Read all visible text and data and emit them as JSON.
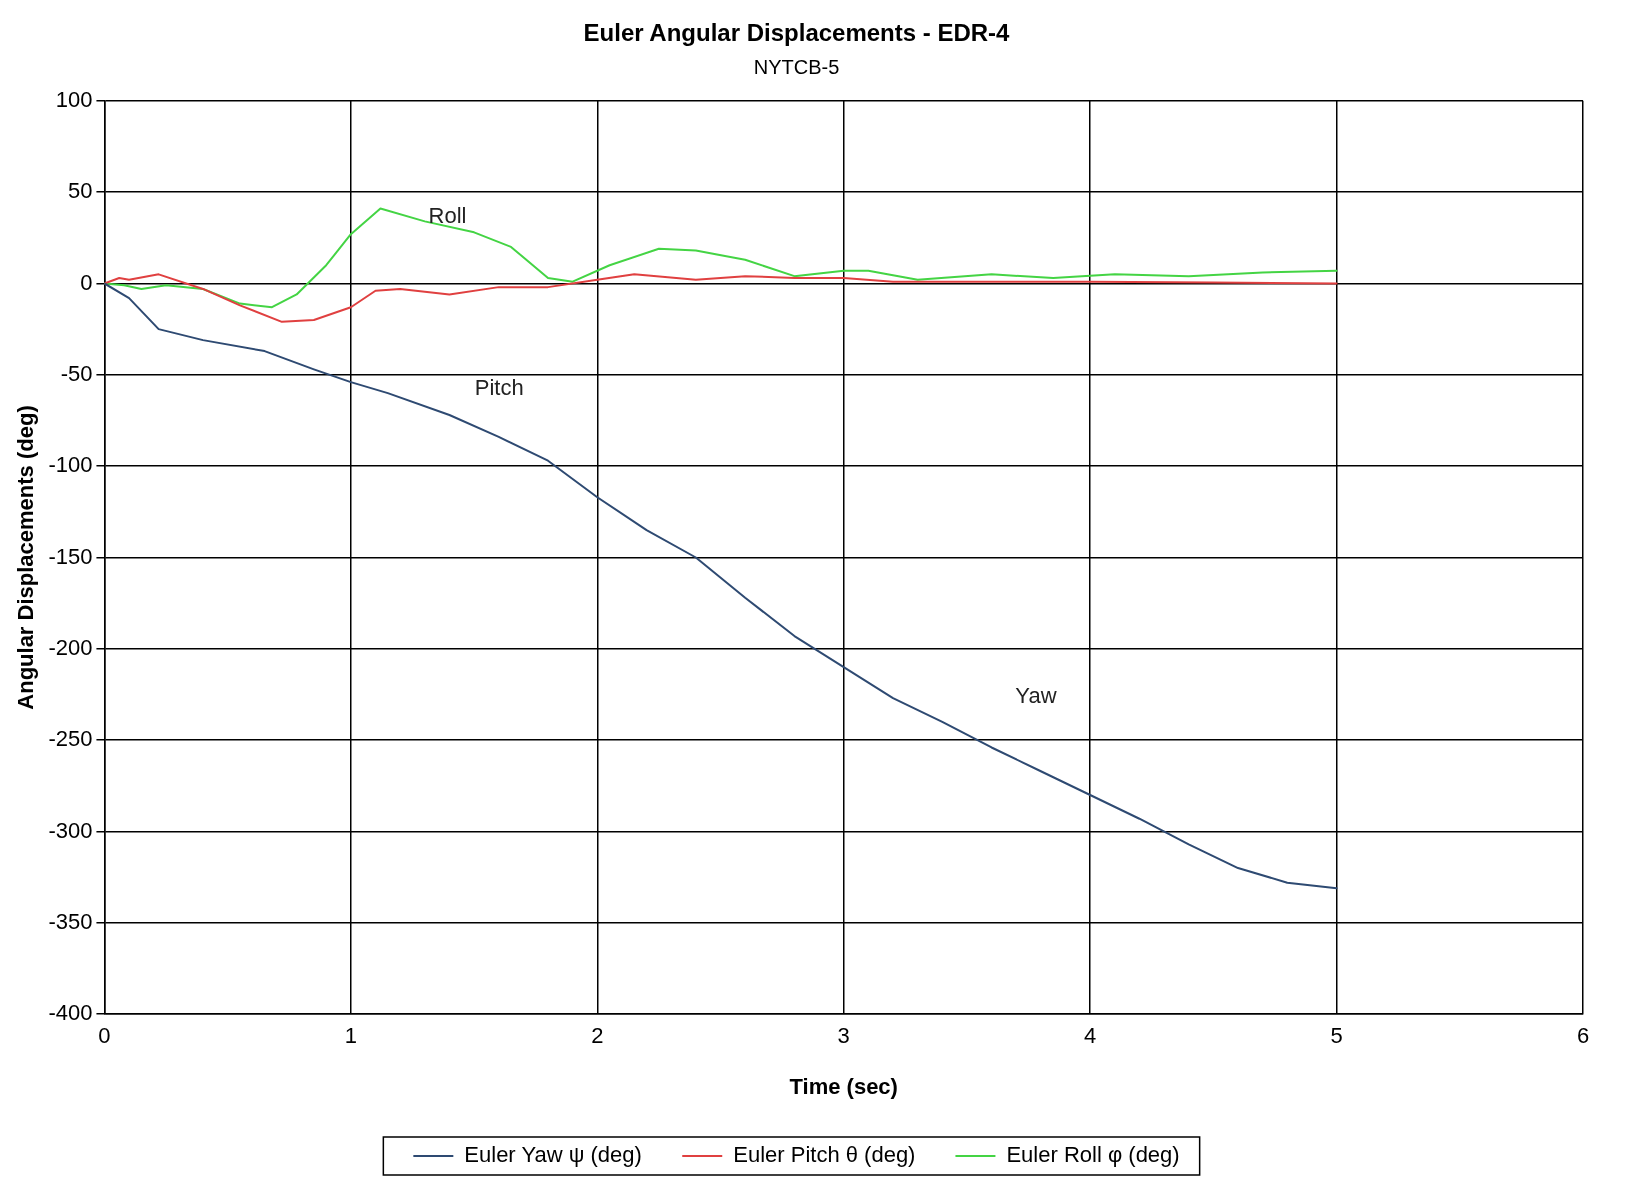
{
  "chart_data": {
    "type": "line",
    "title": "Euler Angular Displacements - EDR-4",
    "subtitle": "NYTCB-5",
    "xlabel": "Time (sec)",
    "ylabel": "Angular Displacements (deg)",
    "xlim": [
      0,
      6
    ],
    "xticks": [
      0,
      1,
      2,
      3,
      4,
      5,
      6
    ],
    "ylim": [
      -400,
      100
    ],
    "yticks": [
      -400,
      -350,
      -300,
      -250,
      -200,
      -150,
      -100,
      -50,
      0,
      50,
      100
    ],
    "grid": true,
    "legend": "bottom",
    "marker": "none",
    "line_style": "solid",
    "annotations": [
      "Roll",
      "Pitch",
      "Yaw"
    ],
    "series": [
      {
        "name": "Euler Yaw ψ (deg)",
        "color": "#2e4a72",
        "x": [
          0,
          0.1,
          0.22,
          0.4,
          0.65,
          0.85,
          1,
          1.15,
          1.4,
          1.6,
          1.8,
          2,
          2.2,
          2.4,
          2.6,
          2.8,
          3,
          3.2,
          3.4,
          3.6,
          3.8,
          4,
          4.2,
          4.4,
          4.6,
          4.8,
          5
        ],
        "values": [
          0,
          -8,
          -25,
          -31,
          -37,
          -47,
          -54,
          -60,
          -72,
          -84,
          -97,
          -117,
          -135,
          -150,
          -172,
          -193,
          -210,
          -227,
          -240,
          -254,
          -267,
          -280,
          -293,
          -307,
          -320,
          -328,
          -331
        ]
      },
      {
        "name": "Euler Pitch θ (deg)",
        "color": "#e04040",
        "x": [
          0,
          0.06,
          0.1,
          0.22,
          0.4,
          0.55,
          0.72,
          0.85,
          1,
          1.1,
          1.2,
          1.4,
          1.6,
          1.8,
          2,
          2.15,
          2.4,
          2.6,
          2.8,
          3,
          3.2,
          3.5,
          4,
          4.5,
          5
        ],
        "values": [
          0,
          3,
          2,
          5,
          -3,
          -12,
          -21,
          -20,
          -13,
          -4,
          -3,
          -6,
          -2,
          -2,
          2,
          5,
          2,
          4,
          3,
          3,
          1,
          1,
          1,
          0.5,
          0
        ]
      },
      {
        "name": "Euler Roll φ (deg)",
        "color": "#44d444",
        "x": [
          0,
          0.08,
          0.15,
          0.25,
          0.4,
          0.55,
          0.68,
          0.78,
          0.9,
          1,
          1.12,
          1.3,
          1.5,
          1.65,
          1.8,
          1.9,
          2.05,
          2.25,
          2.4,
          2.6,
          2.8,
          3,
          3.1,
          3.3,
          3.6,
          3.85,
          4.1,
          4.4,
          4.7,
          5
        ],
        "values": [
          0,
          -1,
          -3,
          -1,
          -3,
          -11,
          -13,
          -6,
          10,
          27,
          41,
          34,
          28,
          20,
          3,
          1,
          10,
          19,
          18,
          13,
          4,
          7,
          7,
          2,
          5,
          3,
          5,
          4,
          6,
          7
        ]
      }
    ]
  }
}
